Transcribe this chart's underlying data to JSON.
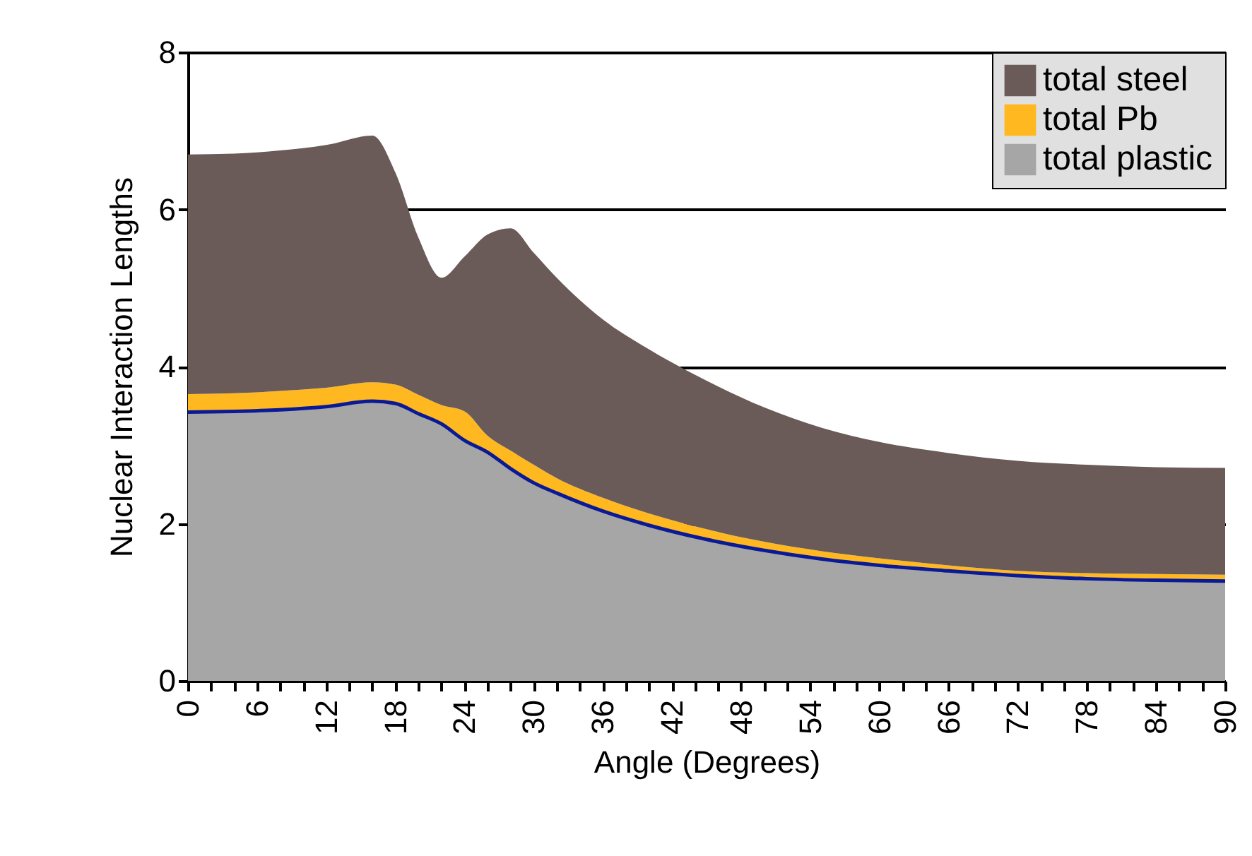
{
  "chart_data": {
    "type": "area",
    "stacked": true,
    "xlabel": "Angle (Degrees)",
    "ylabel": "Nuclear Interaction Lengths",
    "x": [
      0,
      4,
      8,
      12,
      16,
      18,
      20,
      22,
      24,
      26,
      28,
      30,
      32,
      36,
      40,
      45,
      50,
      55,
      60,
      66,
      72,
      78,
      84,
      90
    ],
    "series": [
      {
        "name": "total plastic",
        "color": "#a6a6a6",
        "values": [
          3.42,
          3.43,
          3.45,
          3.49,
          3.56,
          3.53,
          3.4,
          3.27,
          3.06,
          2.91,
          2.7,
          2.52,
          2.39,
          2.16,
          1.98,
          1.8,
          1.66,
          1.55,
          1.47,
          1.4,
          1.34,
          1.3,
          1.28,
          1.27
        ]
      },
      {
        "name": "total Pb",
        "color": "#ffb820",
        "values": [
          0.23,
          0.23,
          0.24,
          0.24,
          0.24,
          0.24,
          0.24,
          0.24,
          0.37,
          0.21,
          0.23,
          0.23,
          0.19,
          0.17,
          0.15,
          0.13,
          0.11,
          0.1,
          0.09,
          0.07,
          0.06,
          0.07,
          0.08,
          0.08
        ]
      },
      {
        "name": "total steel",
        "color": "#6a5a58",
        "values": [
          3.05,
          3.05,
          3.06,
          3.09,
          3.14,
          2.7,
          2.0,
          1.62,
          1.97,
          2.56,
          2.83,
          2.7,
          2.55,
          2.27,
          2.09,
          1.89,
          1.71,
          1.57,
          1.48,
          1.43,
          1.4,
          1.38,
          1.36,
          1.36
        ]
      }
    ],
    "xlim": [
      0,
      90
    ],
    "xticks": [
      0,
      {
        "value": 2,
        "label": null
      },
      {
        "value": 4,
        "label": null
      },
      6,
      {
        "value": 8,
        "label": null
      },
      {
        "value": 10,
        "label": null
      },
      12,
      {
        "value": 14,
        "label": null
      },
      {
        "value": 16,
        "label": null
      },
      18,
      {
        "value": 20,
        "label": null
      },
      {
        "value": 22,
        "label": null
      },
      24,
      {
        "value": 26,
        "label": null
      },
      {
        "value": 28,
        "label": null
      },
      30,
      {
        "value": 32,
        "label": null
      },
      {
        "value": 34,
        "label": null
      },
      36,
      {
        "value": 38,
        "label": null
      },
      {
        "value": 40,
        "label": null
      },
      42,
      {
        "value": 44,
        "label": null
      },
      {
        "value": 46,
        "label": null
      },
      48,
      {
        "value": 50,
        "label": null
      },
      {
        "value": 52,
        "label": null
      },
      54,
      {
        "value": 56,
        "label": null
      },
      {
        "value": 58,
        "label": null
      },
      60,
      {
        "value": 62,
        "label": null
      },
      {
        "value": 64,
        "label": null
      },
      66,
      {
        "value": 68,
        "label": null
      },
      {
        "value": 70,
        "label": null
      },
      72,
      {
        "value": 74,
        "label": null
      },
      {
        "value": 76,
        "label": null
      },
      78,
      {
        "value": 80,
        "label": null
      },
      {
        "value": 82,
        "label": null
      },
      84,
      {
        "value": 86,
        "label": null
      },
      {
        "value": 88,
        "label": null
      },
      90
    ],
    "ylim": [
      0,
      8
    ],
    "yticks": [
      0,
      2,
      4,
      6,
      8
    ],
    "grid": "y",
    "legend": "top right"
  }
}
